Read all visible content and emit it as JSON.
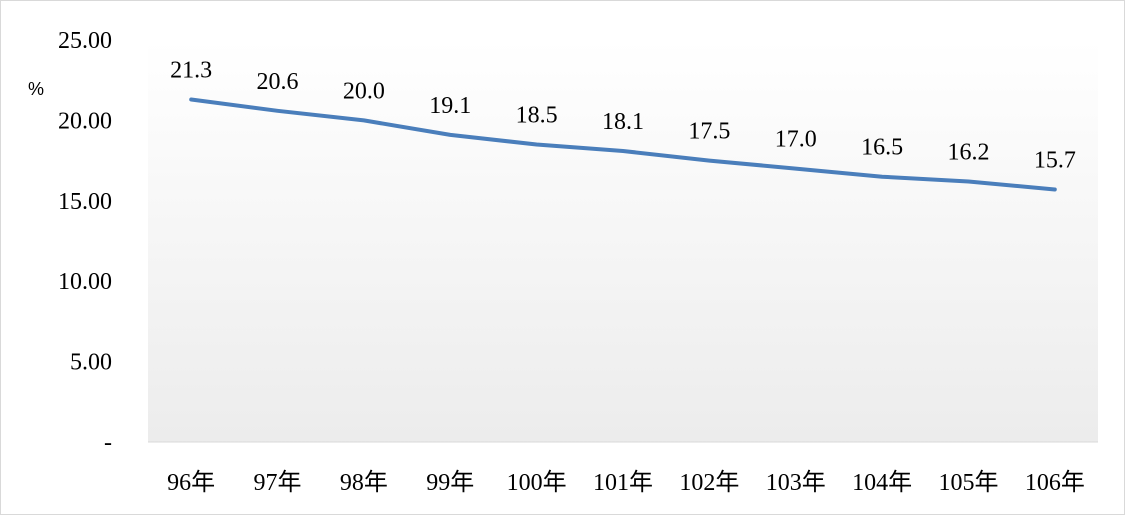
{
  "chart_data": {
    "type": "line",
    "title": "",
    "xlabel": "",
    "ylabel": "%",
    "ylim": [
      0,
      25
    ],
    "ytick_labels": [
      "-",
      "5.00",
      "10.00",
      "15.00",
      "20.00",
      "25.00"
    ],
    "ytick_values": [
      0,
      5,
      10,
      15,
      20,
      25
    ],
    "categories": [
      "96年",
      "97年",
      "98年",
      "99年",
      "100年",
      "101年",
      "102年",
      "103年",
      "104年",
      "105年",
      "106年"
    ],
    "series": [
      {
        "values": [
          21.3,
          20.6,
          20.0,
          19.1,
          18.5,
          18.1,
          17.5,
          17.0,
          16.5,
          16.2,
          15.7
        ],
        "color": "#4a7ebb"
      }
    ],
    "grid": false,
    "legend": "none",
    "plot_background": "gradient-white-to-light-gray"
  }
}
